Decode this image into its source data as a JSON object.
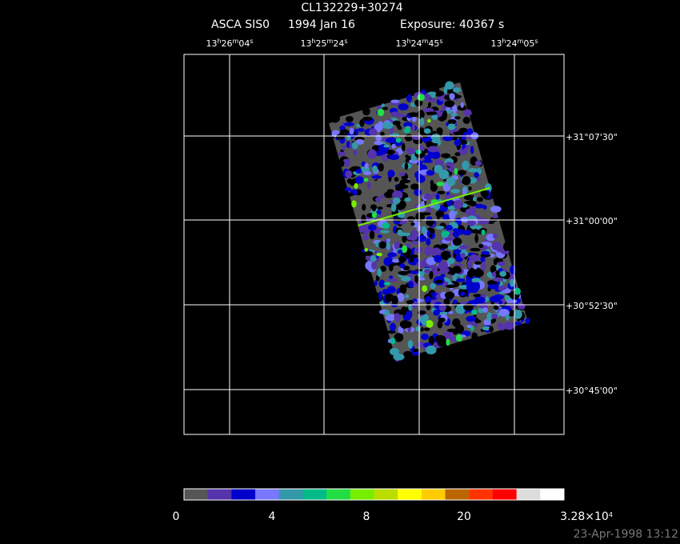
{
  "title": "CL132229+30274",
  "subtitle": {
    "instrument": "ASCA SIS0",
    "date": "1994 Jan 16",
    "exposure": "Exposure: 40367 s"
  },
  "ra_labels": [
    [
      "13",
      "h",
      "26",
      "m",
      "04",
      "s"
    ],
    [
      "13",
      "h",
      "25",
      "m",
      "24",
      "s"
    ],
    [
      "13",
      "h",
      "24",
      "m",
      "45",
      "s"
    ],
    [
      "13",
      "h",
      "24",
      "m",
      "05",
      "s"
    ]
  ],
  "dec_labels": [
    "+31°07'30\"",
    "+31°00'00\"",
    "+30°52'30\"",
    "+30°45'00\""
  ],
  "colorbar": {
    "colors": [
      "#555555",
      "#5533aa",
      "#0000cc",
      "#7777ff",
      "#3399aa",
      "#00bb88",
      "#22dd44",
      "#77ee00",
      "#bbdd00",
      "#ffff00",
      "#ffcc00",
      "#bb6600",
      "#ff3300",
      "#ff0000",
      "#dddddd",
      "#ffffff"
    ],
    "labels": [
      [
        "0"
      ],
      [
        "4"
      ],
      [
        "8"
      ],
      [
        "20"
      ],
      [
        "3.28×10",
        "4"
      ]
    ]
  },
  "timestamp": "23-Apr-1998 13:12"
}
